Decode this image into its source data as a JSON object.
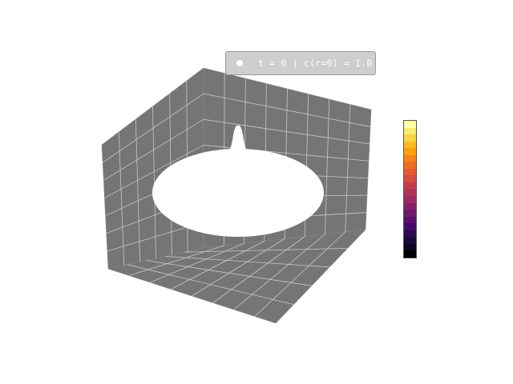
{
  "chart_data": {
    "type": "surface",
    "projection": "3d",
    "title": "",
    "xlabel": "",
    "ylabel": "",
    "zlabel": "",
    "grid": true,
    "pane_color": "#757575",
    "grid_color": "#c8c8c8",
    "surface_color": "#ffffff",
    "legend_location": "top-center",
    "series": [
      {
        "name": "t = 0 | c(r=0) = 1.0",
        "marker_color": "#ffffff"
      }
    ],
    "surface": {
      "shape": "disk",
      "peak_at_center": 1.0
    },
    "colorbar": {
      "cmap": "inferno",
      "colors": [
        "#fcffa4",
        "#f6d746",
        "#fca50a",
        "#f1711f",
        "#dd513a",
        "#bc3754",
        "#932667",
        "#6a176e",
        "#420a68",
        "#160b39",
        "#000004"
      ]
    }
  }
}
